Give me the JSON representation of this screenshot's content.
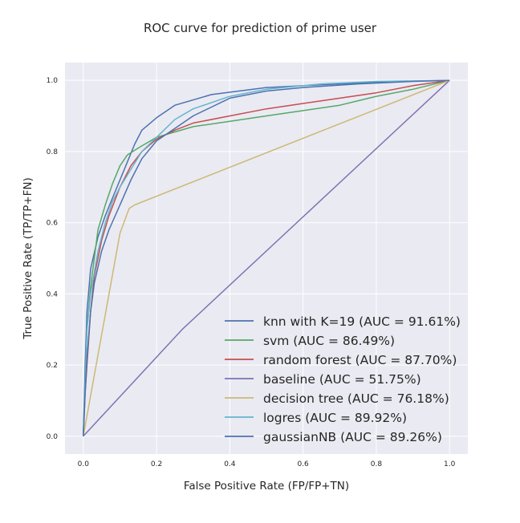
{
  "chart_data": {
    "type": "line",
    "title": "ROC curve for prediction of prime user",
    "xlabel": "False Positive Rate (FP/FP+TN)",
    "ylabel": "True Positive Rate (TP/TP+FN)",
    "xlim": [
      -0.05,
      1.05
    ],
    "ylim": [
      -0.05,
      1.05
    ],
    "x_ticks": [
      "0.0",
      "0.2",
      "0.4",
      "0.6",
      "0.8",
      "1.0"
    ],
    "y_ticks": [
      "0.0",
      "0.2",
      "0.4",
      "0.6",
      "0.8",
      "1.0"
    ],
    "grid": true,
    "legend_position": "bottom-right",
    "series": [
      {
        "name": "knn with K=19 (AUC = 91.61%)",
        "color": "#4c72b0",
        "points": [
          [
            0,
            0
          ],
          [
            0.005,
            0.2
          ],
          [
            0.01,
            0.35
          ],
          [
            0.02,
            0.47
          ],
          [
            0.04,
            0.56
          ],
          [
            0.06,
            0.62
          ],
          [
            0.08,
            0.67
          ],
          [
            0.1,
            0.72
          ],
          [
            0.12,
            0.77
          ],
          [
            0.14,
            0.82
          ],
          [
            0.16,
            0.86
          ],
          [
            0.2,
            0.895
          ],
          [
            0.25,
            0.93
          ],
          [
            0.35,
            0.96
          ],
          [
            0.5,
            0.98
          ],
          [
            0.7,
            0.99
          ],
          [
            0.85,
            0.997
          ],
          [
            1,
            1
          ]
        ]
      },
      {
        "name": "svm (AUC = 86.49%)",
        "color": "#55a868",
        "points": [
          [
            0,
            0
          ],
          [
            0.005,
            0.15
          ],
          [
            0.01,
            0.3
          ],
          [
            0.02,
            0.42
          ],
          [
            0.04,
            0.58
          ],
          [
            0.06,
            0.65
          ],
          [
            0.08,
            0.71
          ],
          [
            0.1,
            0.76
          ],
          [
            0.12,
            0.79
          ],
          [
            0.15,
            0.81
          ],
          [
            0.2,
            0.84
          ],
          [
            0.25,
            0.855
          ],
          [
            0.3,
            0.87
          ],
          [
            0.4,
            0.885
          ],
          [
            0.5,
            0.9
          ],
          [
            0.6,
            0.915
          ],
          [
            0.7,
            0.93
          ],
          [
            0.8,
            0.955
          ],
          [
            0.9,
            0.975
          ],
          [
            1,
            1
          ]
        ]
      },
      {
        "name": "random forest (AUC = 87.70%)",
        "color": "#c44e52",
        "points": [
          [
            0,
            0
          ],
          [
            0.005,
            0.12
          ],
          [
            0.01,
            0.2
          ],
          [
            0.02,
            0.35
          ],
          [
            0.03,
            0.45
          ],
          [
            0.05,
            0.55
          ],
          [
            0.07,
            0.62
          ],
          [
            0.1,
            0.7
          ],
          [
            0.13,
            0.76
          ],
          [
            0.16,
            0.8
          ],
          [
            0.2,
            0.835
          ],
          [
            0.25,
            0.86
          ],
          [
            0.3,
            0.88
          ],
          [
            0.4,
            0.9
          ],
          [
            0.5,
            0.92
          ],
          [
            0.6,
            0.935
          ],
          [
            0.7,
            0.95
          ],
          [
            0.8,
            0.965
          ],
          [
            0.9,
            0.985
          ],
          [
            1,
            1
          ]
        ]
      },
      {
        "name": "baseline (AUC = 51.75%)",
        "color": "#8172b2",
        "points": [
          [
            0,
            0
          ],
          [
            0.27,
            0.3
          ],
          [
            1,
            1
          ]
        ]
      },
      {
        "name": "decision tree (AUC = 76.18%)",
        "color": "#ccb974",
        "points": [
          [
            0,
            0
          ],
          [
            0.1,
            0.57
          ],
          [
            0.125,
            0.64
          ],
          [
            0.14,
            0.65
          ],
          [
            1,
            1
          ]
        ]
      },
      {
        "name": "logres (AUC = 89.92%)",
        "color": "#64b5cd",
        "points": [
          [
            0,
            0
          ],
          [
            0.005,
            0.15
          ],
          [
            0.01,
            0.3
          ],
          [
            0.02,
            0.4
          ],
          [
            0.04,
            0.52
          ],
          [
            0.06,
            0.6
          ],
          [
            0.08,
            0.66
          ],
          [
            0.1,
            0.7
          ],
          [
            0.13,
            0.75
          ],
          [
            0.16,
            0.8
          ],
          [
            0.2,
            0.84
          ],
          [
            0.25,
            0.89
          ],
          [
            0.3,
            0.92
          ],
          [
            0.4,
            0.955
          ],
          [
            0.5,
            0.975
          ],
          [
            0.65,
            0.99
          ],
          [
            0.8,
            0.997
          ],
          [
            1,
            1
          ]
        ]
      },
      {
        "name": "gaussianNB (AUC = 89.26%)",
        "color": "#4c72b0",
        "points": [
          [
            0,
            0
          ],
          [
            0.005,
            0.12
          ],
          [
            0.01,
            0.22
          ],
          [
            0.02,
            0.35
          ],
          [
            0.03,
            0.43
          ],
          [
            0.05,
            0.52
          ],
          [
            0.07,
            0.58
          ],
          [
            0.1,
            0.65
          ],
          [
            0.13,
            0.72
          ],
          [
            0.16,
            0.78
          ],
          [
            0.2,
            0.83
          ],
          [
            0.25,
            0.865
          ],
          [
            0.3,
            0.9
          ],
          [
            0.35,
            0.925
          ],
          [
            0.4,
            0.95
          ],
          [
            0.5,
            0.97
          ],
          [
            0.6,
            0.98
          ],
          [
            0.75,
            0.99
          ],
          [
            0.9,
            0.997
          ],
          [
            1,
            1
          ]
        ]
      }
    ]
  }
}
